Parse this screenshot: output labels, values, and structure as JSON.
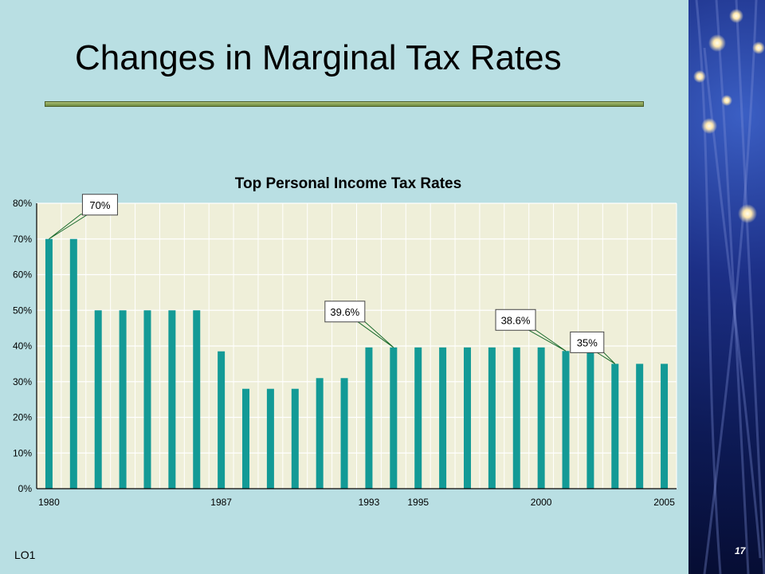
{
  "slide": {
    "title": "Changes in Marginal Tax Rates",
    "footer_label": "LO1",
    "page_number": "17"
  },
  "colors": {
    "background": "#b9dfe3",
    "bar": "#139a96",
    "plot_area": "#efefd9",
    "title_rule": "#8aa457"
  },
  "chart_data": {
    "type": "bar",
    "title": "Top Personal Income Tax Rates",
    "xlabel": "",
    "ylabel": "",
    "ylim": [
      0,
      80
    ],
    "y_ticks": [
      "0%",
      "10%",
      "20%",
      "30%",
      "40%",
      "50%",
      "60%",
      "70%",
      "80%"
    ],
    "x_tick_labels": [
      {
        "year": 1980,
        "label": "1980"
      },
      {
        "year": 1987,
        "label": "1987"
      },
      {
        "year": 1993,
        "label": "1993"
      },
      {
        "year": 1995,
        "label": "1995"
      },
      {
        "year": 2000,
        "label": "2000"
      },
      {
        "year": 2005,
        "label": "2005"
      }
    ],
    "categories": [
      1980,
      1981,
      1982,
      1983,
      1984,
      1985,
      1986,
      1987,
      1988,
      1989,
      1990,
      1991,
      1992,
      1993,
      1994,
      1995,
      1996,
      1997,
      1998,
      1999,
      2000,
      2001,
      2002,
      2003,
      2004,
      2005
    ],
    "values": [
      70,
      70,
      50,
      50,
      50,
      50,
      50,
      38.5,
      28,
      28,
      28,
      31,
      31,
      39.6,
      39.6,
      39.6,
      39.6,
      39.6,
      39.6,
      39.6,
      39.6,
      38.6,
      38.6,
      35,
      35,
      35
    ],
    "grid": true,
    "legend": "none",
    "annotations": [
      {
        "text": "70%",
        "year": 1980,
        "value": 70
      },
      {
        "text": "39.6%",
        "year": 1994,
        "value": 39.6
      },
      {
        "text": "38.6%",
        "year": 2001,
        "value": 38.6
      },
      {
        "text": "35%",
        "year": 2003,
        "value": 35
      }
    ]
  }
}
